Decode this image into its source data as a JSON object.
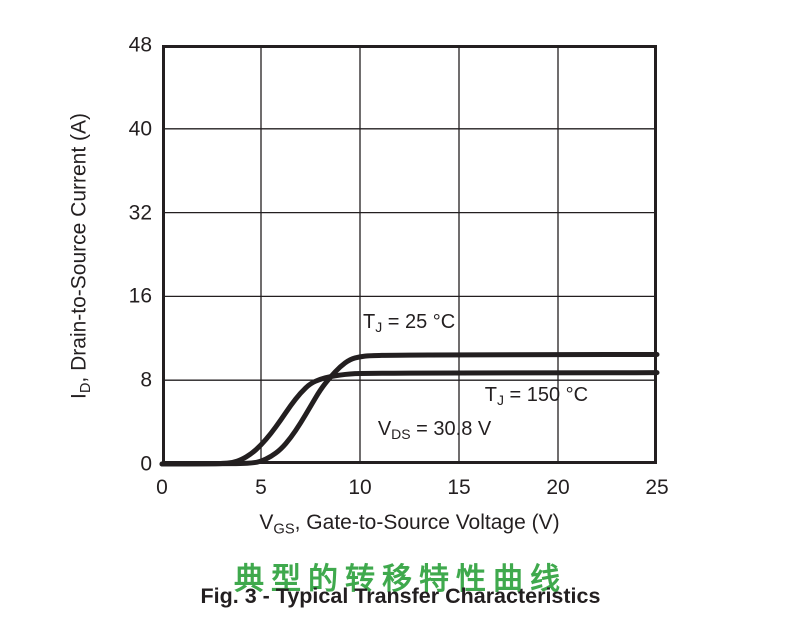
{
  "figure": {
    "caption_cn": "典型的转移特性曲线",
    "caption_en": "Fig. 3 - Typical Transfer Characteristics",
    "colors": {
      "caption_cn_green": "#3fa94d",
      "ink": "#231f20"
    }
  },
  "chart_data": {
    "type": "line",
    "title": "Fig. 3 - Typical Transfer Characteristics",
    "xlabel": {
      "pre": "V",
      "sub": "GS",
      "post": ", Gate-to-Source Voltage (V)"
    },
    "ylabel": {
      "pre": "I",
      "sub": "D",
      "post": ", Drain-to-Source Current (A)"
    },
    "xlim": [
      0,
      25
    ],
    "x_ticks": [
      0,
      5,
      10,
      15,
      20,
      25
    ],
    "y_ticks": [
      0,
      8,
      16,
      32,
      40,
      48
    ],
    "y_axis_note": "gridlines evenly spaced as printed; the 24 A label is skipped in the source figure",
    "grid": true,
    "line_color": "#231f20",
    "legend_position": "inline annotations",
    "series": [
      {
        "name": "TJ = 25 °C",
        "points": [
          [
            0,
            0
          ],
          [
            3,
            0.02
          ],
          [
            4,
            0.05
          ],
          [
            4.6,
            0.1
          ],
          [
            5,
            0.25
          ],
          [
            5.5,
            0.7
          ],
          [
            6,
            1.4
          ],
          [
            6.5,
            2.5
          ],
          [
            7,
            3.9
          ],
          [
            7.5,
            5.5
          ],
          [
            8,
            7.1
          ],
          [
            8.5,
            8.3
          ],
          [
            9,
            9.3
          ],
          [
            9.5,
            10.0
          ],
          [
            10,
            10.25
          ],
          [
            10.5,
            10.35
          ],
          [
            12,
            10.4
          ],
          [
            15,
            10.42
          ],
          [
            20,
            10.45
          ],
          [
            25,
            10.45
          ]
        ]
      },
      {
        "name": "TJ = 150 °C",
        "points": [
          [
            0,
            0
          ],
          [
            2.6,
            0.02
          ],
          [
            3.2,
            0.06
          ],
          [
            3.6,
            0.15
          ],
          [
            4,
            0.4
          ],
          [
            4.5,
            0.95
          ],
          [
            5,
            1.8
          ],
          [
            5.5,
            2.9
          ],
          [
            6,
            4.2
          ],
          [
            6.5,
            5.6
          ],
          [
            7,
            6.8
          ],
          [
            7.5,
            7.7
          ],
          [
            8,
            8.1
          ],
          [
            8.5,
            8.35
          ],
          [
            9,
            8.5
          ],
          [
            9.5,
            8.6
          ],
          [
            10,
            8.65
          ],
          [
            15,
            8.7
          ],
          [
            20,
            8.7
          ],
          [
            25,
            8.72
          ]
        ]
      }
    ],
    "annotations": [
      {
        "pre": "T",
        "sub": "J",
        "post": " = 25 °C",
        "x": 10.15,
        "y": 13.5
      },
      {
        "pre": "T",
        "sub": "J",
        "post": " = 150 °C",
        "x": 16.3,
        "y": 6.5
      },
      {
        "pre": "V",
        "sub": "DS",
        "post": " = 30.8 V",
        "x": 10.9,
        "y": 3.2
      }
    ]
  }
}
